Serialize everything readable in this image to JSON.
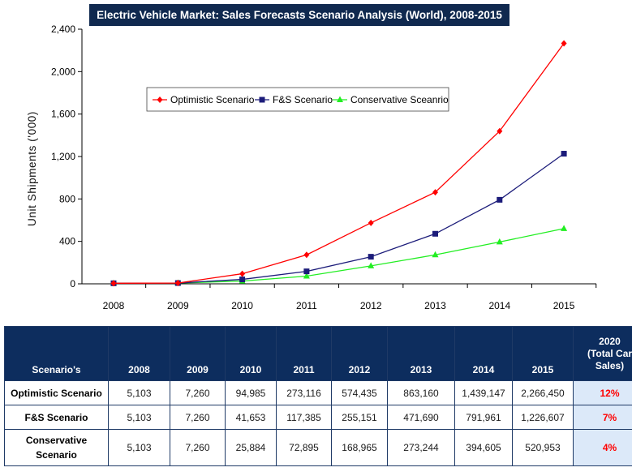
{
  "chart_data": {
    "type": "line",
    "title": "Electric Vehicle Market: Sales Forecasts Scenario Analysis (World), 2008-2015",
    "ylabel": "Unit Shipments ('000)",
    "xlabel": "",
    "categories": [
      "2008",
      "2009",
      "2010",
      "2011",
      "2012",
      "2013",
      "2014",
      "2015"
    ],
    "ylim": [
      0,
      2400
    ],
    "yticks": [
      0,
      400,
      800,
      1200,
      1600,
      2000,
      2400
    ],
    "ytick_labels": [
      "0",
      "400",
      "800",
      "1,200",
      "1,600",
      "2,000",
      "2,400"
    ],
    "grid": false,
    "legend_position": "center-left",
    "series": [
      {
        "name": "Optimistic Scenario",
        "color": "#ff0000",
        "marker": "diamond",
        "values": [
          5.103,
          7.26,
          94.985,
          273.116,
          574.435,
          863.16,
          1439.147,
          2266.45
        ]
      },
      {
        "name": "F&S Scenario",
        "color": "#1c1c7a",
        "marker": "square",
        "values": [
          5.103,
          7.26,
          41.653,
          117.385,
          255.151,
          471.69,
          791.961,
          1226.607
        ]
      },
      {
        "name": "Conservative Sceanrio",
        "color": "#22ee22",
        "marker": "triangle",
        "values": [
          5.103,
          7.26,
          25.884,
          72.895,
          168.965,
          273.244,
          394.605,
          520.953
        ]
      }
    ]
  },
  "table": {
    "header": {
      "scenario": "Scenario's",
      "years": [
        "2008",
        "2009",
        "2010",
        "2011",
        "2012",
        "2013",
        "2014",
        "2015"
      ],
      "extra_line1": "2020",
      "extra_line2": "(Total Car",
      "extra_line3": "Sales)"
    },
    "rows": [
      {
        "name_line1": "Optimistic Scenario",
        "name_line2": "",
        "values": [
          "5,103",
          "7,260",
          "94,985",
          "273,116",
          "574,435",
          "863,160",
          "1,439,147",
          "2,266,450"
        ],
        "share": "12%"
      },
      {
        "name_line1": "F&S Scenario",
        "name_line2": "",
        "values": [
          "5,103",
          "7,260",
          "41,653",
          "117,385",
          "255,151",
          "471,690",
          "791,961",
          "1,226,607"
        ],
        "share": "7%"
      },
      {
        "name_line1": "Conservative",
        "name_line2": "Scenario",
        "values": [
          "5,103",
          "7,260",
          "25,884",
          "72,895",
          "168,965",
          "273,244",
          "394,605",
          "520,953"
        ],
        "share": "4%"
      }
    ]
  }
}
